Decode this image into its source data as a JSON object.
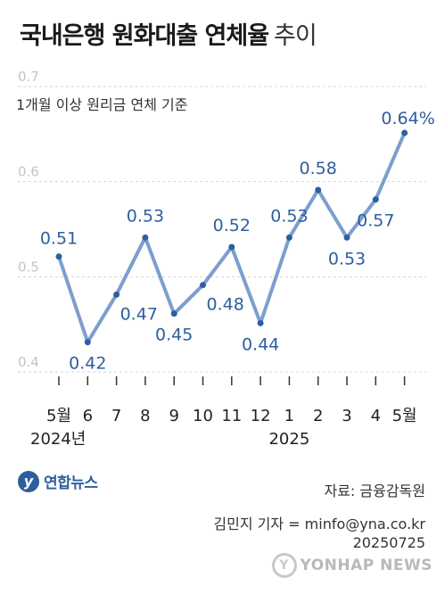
{
  "header": {
    "title_bold": "국내은행 원화대출 연체율",
    "title_light": "추이"
  },
  "chart_data": {
    "type": "line",
    "title": "국내은행 원화대출 연체율 추이",
    "subtitle": "1개월 이상 원리금 연체 기준",
    "categories": [
      "5월",
      "6",
      "7",
      "8",
      "9",
      "10",
      "11",
      "12",
      "1",
      "2",
      "3",
      "4",
      "5월"
    ],
    "year_labels": [
      {
        "index": 0,
        "label": "2024년"
      },
      {
        "index": 8,
        "label": "2025"
      }
    ],
    "series": [
      {
        "values": [
          0.51,
          0.42,
          0.47,
          0.53,
          0.45,
          0.48,
          0.52,
          0.44,
          0.53,
          0.58,
          0.53,
          0.57,
          0.64
        ],
        "labels": [
          "0.51",
          "0.42",
          "0.47",
          "0.53",
          "0.45",
          "0.48",
          "0.52",
          "0.44",
          "0.53",
          "0.58",
          "0.53",
          "0.57",
          "0.64%"
        ]
      }
    ],
    "yticks": [
      "0.4",
      "0.5",
      "0.6",
      "0.7"
    ],
    "ylim": [
      0.4,
      0.7
    ],
    "grid": true,
    "line_color": "#7b9fce",
    "marker_color": "#2d5f9e",
    "label_color": "#2d5f9e"
  },
  "footer": {
    "logo_text": "연합뉴스",
    "source": "자료: 금융감독원",
    "credit_line1": "김민지 기자 = minfo@yna.co.kr",
    "credit_line2": "20250725",
    "watermark": "YONHAP NEWS"
  }
}
